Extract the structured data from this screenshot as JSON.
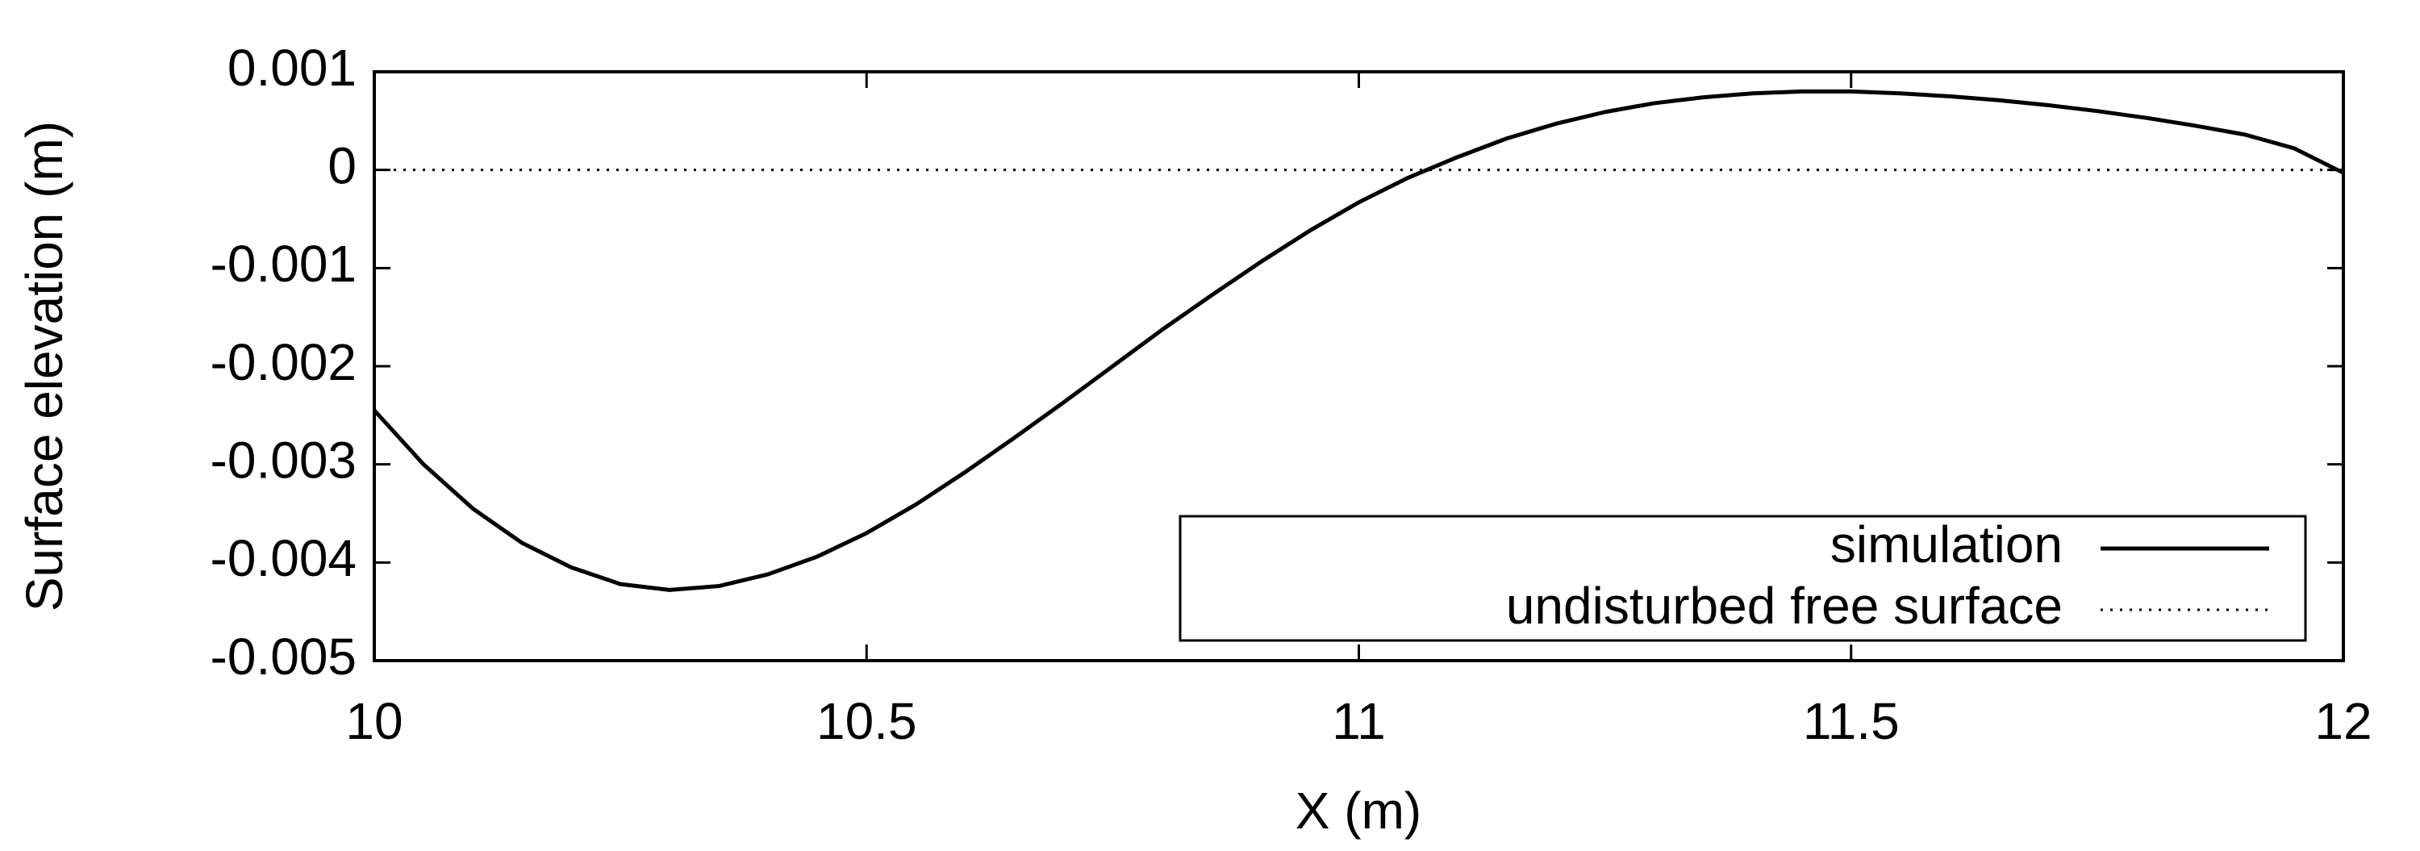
{
  "chart_data": {
    "type": "line",
    "xlabel": "X (m)",
    "ylabel": "Surface elevation (m)",
    "xlim": [
      10,
      12
    ],
    "xticks": [
      10,
      10.5,
      11,
      11.5,
      12
    ],
    "ylim": [
      -0.005,
      0.001
    ],
    "yticks": [
      -0.005,
      -0.004,
      -0.003,
      -0.002,
      -0.001,
      0,
      0.001
    ],
    "legend": "lower right",
    "series": [
      {
        "name": "simulation",
        "color": "#000000",
        "style": "solid",
        "x": [
          10,
          10.05,
          10.1,
          10.15,
          10.2,
          10.25,
          10.3,
          10.35,
          10.4,
          10.45,
          10.5,
          10.55,
          10.6,
          10.65,
          10.7,
          10.75,
          10.8,
          10.85,
          10.9,
          10.95,
          11,
          11.05,
          11.1,
          11.15,
          11.2,
          11.25,
          11.3,
          11.35,
          11.4,
          11.45,
          11.5,
          11.55,
          11.6,
          11.65,
          11.7,
          11.75,
          11.8,
          11.85,
          11.9,
          11.95,
          12
        ],
        "values": [
          -0.00245,
          -0.003,
          -0.00345,
          -0.0038,
          -0.00405,
          -0.00422,
          -0.00428,
          -0.00424,
          -0.00412,
          -0.00394,
          -0.0037,
          -0.00341,
          -0.00308,
          -0.00273,
          -0.00237,
          -0.002,
          -0.00163,
          -0.00128,
          -0.00094,
          -0.00062,
          -0.00033,
          -8e-05,
          0.00013,
          0.00032,
          0.00047,
          0.00059,
          0.00068,
          0.00074,
          0.00078,
          0.0008,
          0.0008,
          0.00078,
          0.00075,
          0.00071,
          0.00066,
          0.0006,
          0.00053,
          0.00045,
          0.00036,
          0.00022,
          -3e-05
        ]
      },
      {
        "name": "undisturbed free surface",
        "color": "#000000",
        "style": "dotted",
        "x": [
          10,
          12
        ],
        "values": [
          0,
          0
        ]
      }
    ]
  }
}
